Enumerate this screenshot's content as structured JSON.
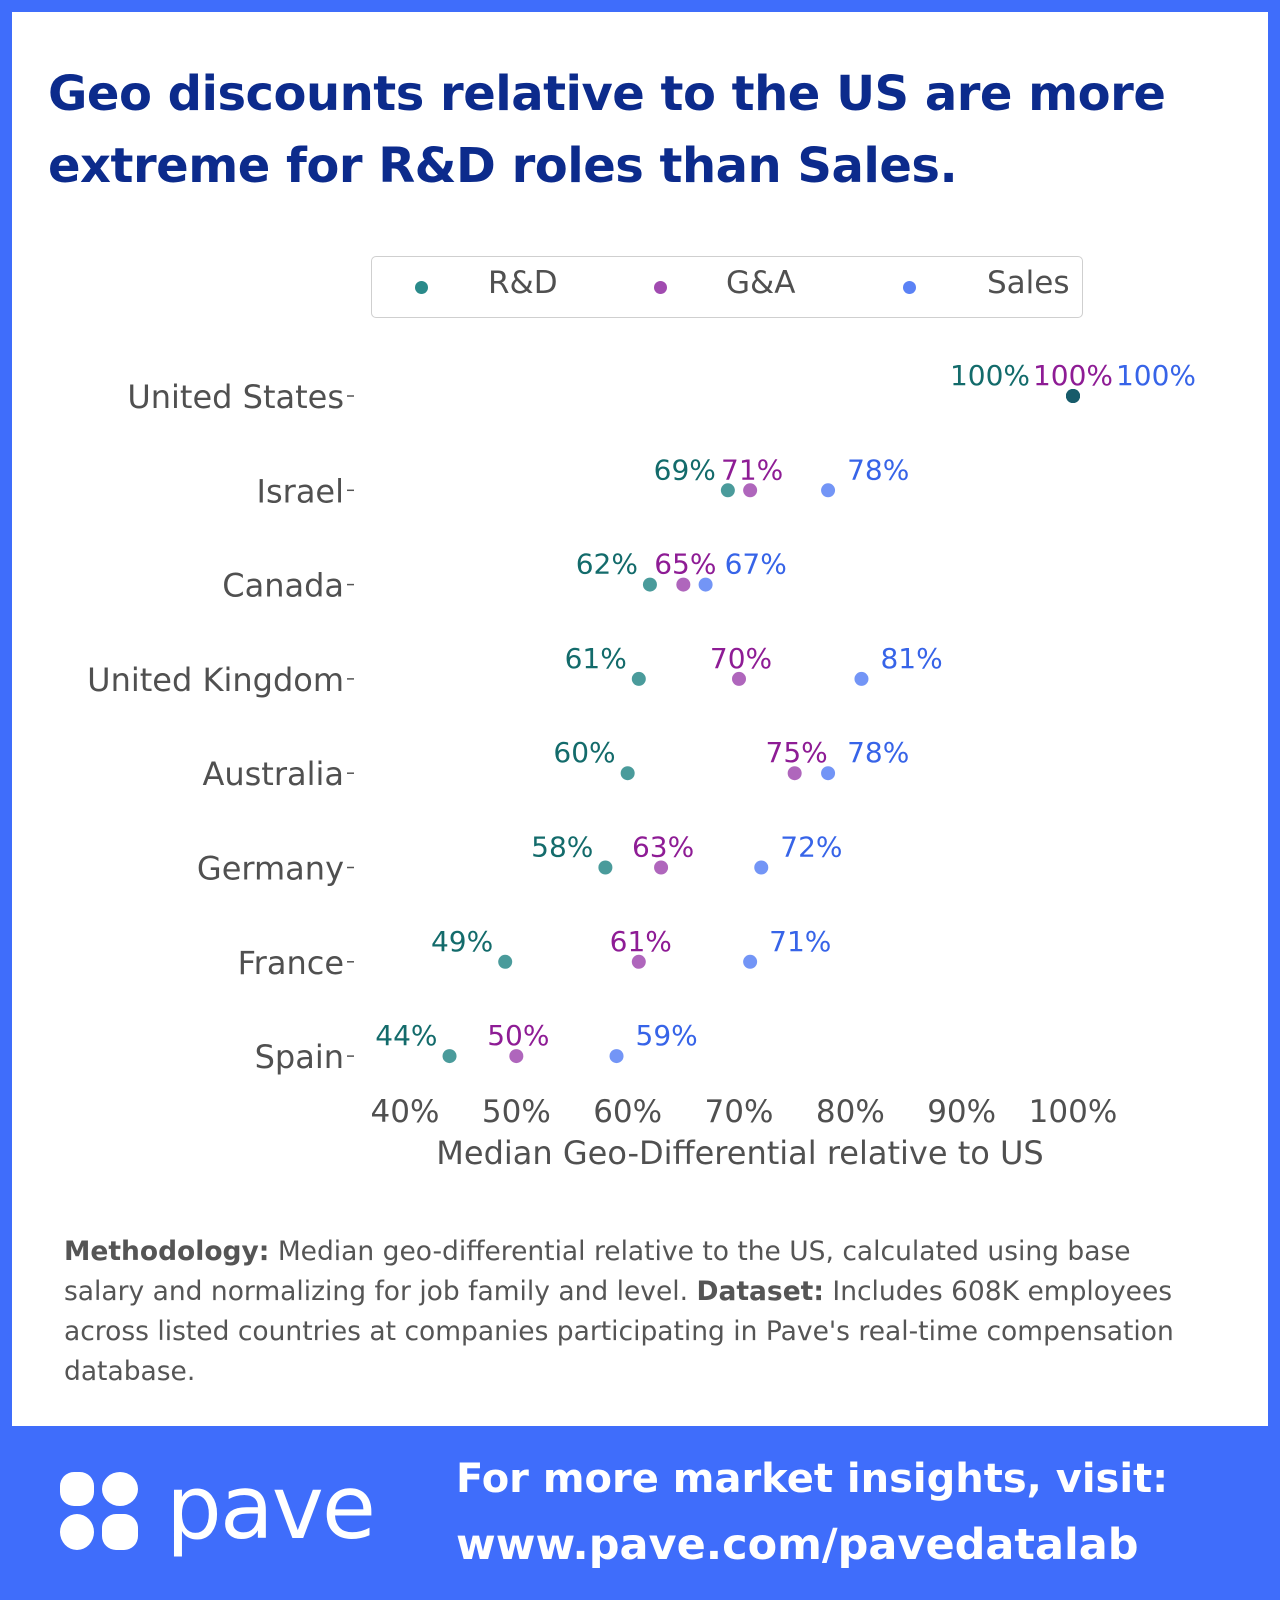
{
  "title": "Geo discounts relative to the US are more extreme for R&D roles than Sales.",
  "colors": {
    "background": "#3f6dfb",
    "title": "#0c2b8c",
    "rd": "#2a8a8a",
    "ga": "#a14bb0",
    "sales": "#5b82f5",
    "rd_text": "#136b6b",
    "ga_text": "#8e1c95",
    "sales_text": "#3764e8",
    "overlap_point": "#175b6a"
  },
  "chart_data": {
    "type": "scatter",
    "orientation": "horizontal-dot-plot",
    "categories": [
      "United States",
      "Israel",
      "Canada",
      "United Kingdom",
      "Australia",
      "Germany",
      "France",
      "Spain"
    ],
    "series": [
      {
        "name": "R&D",
        "values": [
          100,
          69,
          62,
          61,
          60,
          58,
          49,
          44
        ],
        "labels": [
          "100%",
          "69%",
          "62%",
          "61%",
          "60%",
          "58%",
          "49%",
          "44%"
        ]
      },
      {
        "name": "G&A",
        "values": [
          100,
          71,
          65,
          70,
          75,
          63,
          61,
          50
        ],
        "labels": [
          "100%",
          "71%",
          "65%",
          "70%",
          "75%",
          "63%",
          "61%",
          "50%"
        ]
      },
      {
        "name": "Sales",
        "values": [
          100,
          78,
          67,
          81,
          78,
          72,
          71,
          59
        ],
        "labels": [
          "100%",
          "78%",
          "67%",
          "81%",
          "78%",
          "72%",
          "71%",
          "59%"
        ]
      }
    ],
    "xlabel": "Median Geo-Differential relative to US",
    "xlim": [
      40,
      100
    ],
    "xticks": [
      40,
      50,
      60,
      70,
      80,
      90,
      100
    ],
    "xtick_labels": [
      "40%",
      "50%",
      "60%",
      "70%",
      "80%",
      "90%",
      "100%"
    ],
    "legend": {
      "placement": "top",
      "entries": [
        "R&D",
        "G&A",
        "Sales"
      ]
    },
    "grid": false
  },
  "methodology": {
    "label": "Methodology:",
    "text": " Median geo-differential relative to the US, calculated using base salary and normalizing for job family and level. ",
    "dataset_label": "Dataset:",
    "dataset_text": " Includes 608K employees across listed countries at companies participating in Pave's real-time compensation database."
  },
  "footer": {
    "logo_text": "pave",
    "cta_line1": "For more market insights, visit:",
    "cta_line2": "www.pave.com/pavedatalab"
  }
}
